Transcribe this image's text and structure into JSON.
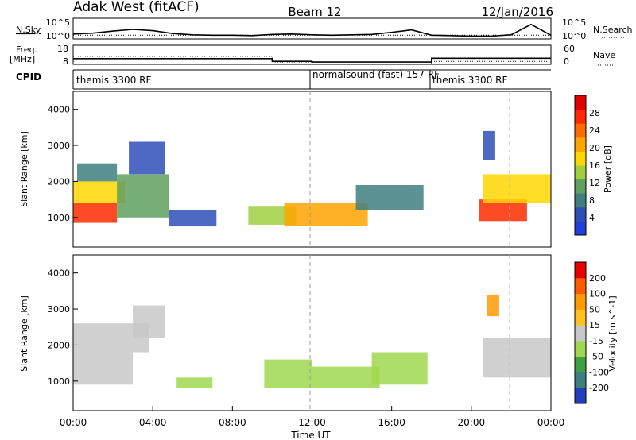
{
  "header": {
    "title": "Adak West (fitACF)",
    "beam": "Beam 12",
    "date": "12/Jan/2016"
  },
  "nsky_panel": {
    "left_label": "N.Sky",
    "right_label": "N.Search",
    "left_ticks": [
      "10^5",
      "10^0"
    ],
    "right_ticks": [
      "10^5",
      "10^0"
    ]
  },
  "freq_panel": {
    "left_label_line1": "Freq.",
    "left_label_line2": "[MHz]",
    "right_label": "Nave",
    "left_ticks": [
      "18",
      "8"
    ],
    "right_ticks": [
      "60",
      "0"
    ]
  },
  "cpid_panel": {
    "label": "CPID",
    "modes": [
      {
        "label": "themis 3300 RF",
        "start_hour": 0
      },
      {
        "label": "normalsound (fast) 157 RF",
        "start_hour": 12
      },
      {
        "label": "themis 3300 RF",
        "start_hour": 18
      }
    ]
  },
  "colors": {
    "power_scale": [
      "#1f3fd8",
      "#2e4fb8",
      "#3f7f7f",
      "#5f9f5f",
      "#9fcf3f",
      "#ffd700",
      "#ffa500",
      "#ff6a00",
      "#ff2a00",
      "#e00000"
    ],
    "velocity_scale": [
      "#2040c0",
      "#3e7f7f",
      "#3fa03f",
      "#9fd84f",
      "#c8c8c8",
      "#ffc020",
      "#ff9a00",
      "#ff5a00",
      "#e80000"
    ]
  },
  "chart_data": [
    {
      "type": "line",
      "name": "N.Sky / N.Search",
      "x": [
        0,
        1,
        2,
        3,
        4,
        5,
        6,
        7,
        8,
        9,
        10,
        11,
        12,
        13,
        14,
        15,
        16,
        17,
        18,
        19,
        20,
        21,
        22,
        23,
        24
      ],
      "series": [
        {
          "values": [
            1.2,
            1.4,
            1.9,
            2.3,
            2.0,
            1.3,
            1.0,
            0.9,
            0.9,
            0.8,
            1.1,
            1.2,
            1.0,
            0.9,
            1.0,
            1.1,
            1.6,
            2.2,
            0.9,
            0.8,
            0.7,
            0.7,
            1.0,
            3.5,
            0.9
          ]
        },
        {
          "values": [
            0.9,
            0.9,
            0.9,
            0.9,
            0.9,
            0.9,
            0.9,
            0.9,
            0.9,
            0.9,
            0.9,
            0.9,
            0.9,
            0.9,
            0.9,
            0.9,
            0.9,
            0.9,
            0.9,
            0.9,
            0.9,
            0.9,
            0.9,
            0.9,
            0.9
          ]
        }
      ],
      "ylim": [
        0,
        5
      ],
      "xlim": [
        0,
        24
      ]
    },
    {
      "type": "line",
      "name": "Frequency / Nave",
      "x": [
        0,
        10,
        10,
        12,
        12,
        18,
        18,
        24
      ],
      "series": [
        {
          "values": [
            11.0,
            11.0,
            9.6,
            9.6,
            9.2,
            9.2,
            11.2,
            11.2
          ]
        },
        {
          "values": [
            12.2,
            12.2,
            9.2,
            9.2,
            8.0,
            8.0,
            9.6,
            9.6
          ]
        }
      ],
      "ylim": [
        8,
        18
      ],
      "xlim": [
        0,
        24
      ]
    },
    {
      "type": "heatmap",
      "title": "",
      "ylabel": "Slant Range [km]",
      "colorbar_label": "Power [dB]",
      "colorbar_ticks": [
        "4",
        "8",
        "12",
        "16",
        "20",
        "24",
        "28"
      ],
      "y_ticks": [
        "1000",
        "2000",
        "3000",
        "4000"
      ],
      "xlim": [
        0,
        24
      ],
      "ylim": [
        180,
        4500
      ],
      "scale": [
        0,
        32
      ],
      "blobs": [
        {
          "t": [
            0.0,
            2.2
          ],
          "r": [
            850,
            1400
          ],
          "v": 28
        },
        {
          "t": [
            0.0,
            2.6
          ],
          "r": [
            1400,
            2000
          ],
          "v": 18
        },
        {
          "t": [
            0.2,
            2.2
          ],
          "r": [
            2000,
            2500
          ],
          "v": 8
        },
        {
          "t": [
            2.2,
            4.8
          ],
          "r": [
            1000,
            2200
          ],
          "v": 12
        },
        {
          "t": [
            2.8,
            4.6
          ],
          "r": [
            2200,
            3100
          ],
          "v": 6
        },
        {
          "t": [
            4.8,
            7.2
          ],
          "r": [
            750,
            1200
          ],
          "v": 4
        },
        {
          "t": [
            8.8,
            11.2
          ],
          "r": [
            800,
            1300
          ],
          "v": 14
        },
        {
          "t": [
            10.6,
            14.8
          ],
          "r": [
            750,
            1400
          ],
          "v": 20
        },
        {
          "t": [
            14.2,
            17.6
          ],
          "r": [
            1200,
            1900
          ],
          "v": 8
        },
        {
          "t": [
            20.4,
            22.8
          ],
          "r": [
            900,
            1500
          ],
          "v": 26
        },
        {
          "t": [
            20.6,
            24.0
          ],
          "r": [
            1400,
            2200
          ],
          "v": 16
        },
        {
          "t": [
            20.6,
            21.2
          ],
          "r": [
            2600,
            3400
          ],
          "v": 6
        }
      ]
    },
    {
      "type": "heatmap",
      "title": "",
      "xlabel": "Time UT",
      "ylabel": "Slant Range [km]",
      "colorbar_label": "Velocity [m s^-1]",
      "colorbar_ticks": [
        "-200",
        "-100",
        "-50",
        "-15",
        "15",
        "50",
        "100",
        "200"
      ],
      "y_ticks": [
        "1000",
        "2000",
        "3000",
        "4000"
      ],
      "x_ticks": [
        "00:00",
        "04:00",
        "08:00",
        "12:00",
        "16:00",
        "20:00",
        "00:00"
      ],
      "xlim": [
        0,
        24
      ],
      "ylim": [
        180,
        4500
      ],
      "scale": [
        -250,
        250
      ],
      "blobs": [
        {
          "t": [
            0.0,
            3.0
          ],
          "r": [
            900,
            1800
          ],
          "v": 0
        },
        {
          "t": [
            0.0,
            3.8
          ],
          "r": [
            1800,
            2600
          ],
          "v": 0
        },
        {
          "t": [
            3.0,
            4.6
          ],
          "r": [
            2200,
            3100
          ],
          "v": 0
        },
        {
          "t": [
            5.2,
            7.0
          ],
          "r": [
            800,
            1100
          ],
          "v": -60
        },
        {
          "t": [
            9.6,
            12.0
          ],
          "r": [
            800,
            1600
          ],
          "v": -40
        },
        {
          "t": [
            12.0,
            15.4
          ],
          "r": [
            800,
            1400
          ],
          "v": -60
        },
        {
          "t": [
            15.0,
            17.8
          ],
          "r": [
            900,
            1800
          ],
          "v": -80
        },
        {
          "t": [
            20.6,
            24.0
          ],
          "r": [
            1100,
            2200
          ],
          "v": 0
        },
        {
          "t": [
            20.8,
            21.4
          ],
          "r": [
            2800,
            3400
          ],
          "v": 120
        }
      ]
    }
  ]
}
